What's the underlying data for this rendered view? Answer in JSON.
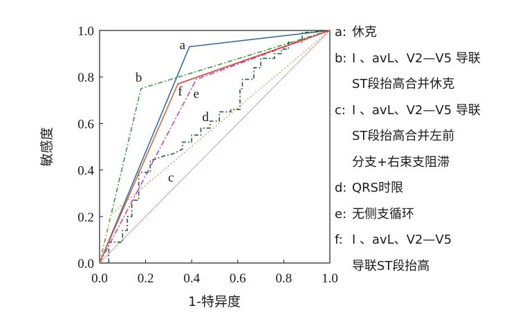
{
  "chart_data": {
    "type": "line",
    "xlabel": "1-特异度",
    "ylabel": "敏感度",
    "xlim": [
      0,
      1
    ],
    "ylim": [
      0,
      1
    ],
    "xticks": [
      "0.0",
      "0.2",
      "0.4",
      "0.6",
      "0.8",
      "1.0"
    ],
    "yticks": [
      "0.0",
      "0.2",
      "0.4",
      "0.6",
      "0.8",
      "1.0"
    ],
    "grid": false,
    "legend_placement": "right",
    "series": [
      {
        "key": "a",
        "name": "休克",
        "color": "#2e6da4",
        "dash": "",
        "x": [
          0,
          0.39,
          1.0
        ],
        "y": [
          0,
          0.93,
          1.0
        ]
      },
      {
        "key": "b",
        "name": "Ⅰ、avL、V2—V5导联ST段抬高合并休克",
        "color": "#3a9a3a",
        "dash": "7,3,2,3",
        "x": [
          0,
          0.18,
          1.0
        ],
        "y": [
          0,
          0.75,
          1.0
        ]
      },
      {
        "key": "c",
        "name": "Ⅰ、avL、V2—V5导联ST段抬高合并左前分支+右束支阻滞",
        "color": "#e8a060",
        "dash": "2,3",
        "x": [
          0,
          0.05,
          1.0
        ],
        "y": [
          0,
          0.21,
          1.0
        ]
      },
      {
        "key": "d",
        "name": "QRS时限",
        "color": "#1f5f2a",
        "dash": "6,3,2,3",
        "x": [
          0,
          0.04,
          0.04,
          0.1,
          0.1,
          0.12,
          0.12,
          0.14,
          0.14,
          0.17,
          0.17,
          0.22,
          0.22,
          0.28,
          0.32,
          0.36,
          0.36,
          0.4,
          0.4,
          0.44,
          0.44,
          0.48,
          0.48,
          0.52,
          0.52,
          0.57,
          0.57,
          0.61,
          0.61,
          0.62,
          0.62,
          0.67,
          0.67,
          0.7,
          0.7,
          0.76,
          0.76,
          0.79,
          0.79,
          0.82,
          0.82,
          0.88,
          0.88,
          1.0
        ],
        "y": [
          0,
          0,
          0.09,
          0.09,
          0.14,
          0.14,
          0.2,
          0.2,
          0.27,
          0.27,
          0.39,
          0.39,
          0.44,
          0.46,
          0.47,
          0.49,
          0.52,
          0.52,
          0.55,
          0.55,
          0.58,
          0.58,
          0.61,
          0.61,
          0.65,
          0.65,
          0.66,
          0.66,
          0.75,
          0.75,
          0.79,
          0.79,
          0.84,
          0.84,
          0.88,
          0.88,
          0.9,
          0.9,
          0.92,
          0.92,
          0.95,
          0.95,
          0.99,
          1.0
        ]
      },
      {
        "key": "e",
        "name": "无侧支循环",
        "color": "#c040c8",
        "dash": "8,3,2,3",
        "x": [
          0,
          0.42,
          1.0
        ],
        "y": [
          0,
          0.79,
          1.0
        ]
      },
      {
        "key": "f",
        "name": "Ⅰ、avL、V2—V5导联ST段抬高",
        "color": "#d0683c",
        "dash": "",
        "x": [
          0,
          0.34,
          1.0
        ],
        "y": [
          0,
          0.77,
          1.0
        ]
      },
      {
        "key": "red",
        "color": "#e02020",
        "dash": "2,2",
        "x": [
          0.34,
          1.0
        ],
        "y": [
          0.77,
          1.0
        ]
      },
      {
        "key": "ref",
        "color": "#c8a0b0",
        "dash": "",
        "x": [
          0,
          1.0
        ],
        "y": [
          0,
          1.0
        ]
      }
    ],
    "curve_labels": [
      {
        "text": "a",
        "x": 0.36,
        "y": 0.92
      },
      {
        "text": "b",
        "x": 0.17,
        "y": 0.78
      },
      {
        "text": "c",
        "x": 0.31,
        "y": 0.35
      },
      {
        "text": "d",
        "x": 0.46,
        "y": 0.61
      },
      {
        "text": "e",
        "x": 0.42,
        "y": 0.71
      },
      {
        "text": "f",
        "x": 0.35,
        "y": 0.72
      }
    ]
  },
  "legend": [
    {
      "key": "a:",
      "text": "休克"
    },
    {
      "key": "b:",
      "text": "Ⅰ 、avL、V2—V5 导联\nST段抬高合并休克"
    },
    {
      "key": "c:",
      "text": "Ⅰ 、avL、V2—V5 导联\nST段抬高合并左前\n分支+右束支阻滞"
    },
    {
      "key": "d:",
      "text": "QRS时限"
    },
    {
      "key": "e:",
      "text": "无侧支循环"
    },
    {
      "key": "f:",
      "text": "Ⅰ 、avL、V2—V5\n导联ST段抬高"
    }
  ]
}
